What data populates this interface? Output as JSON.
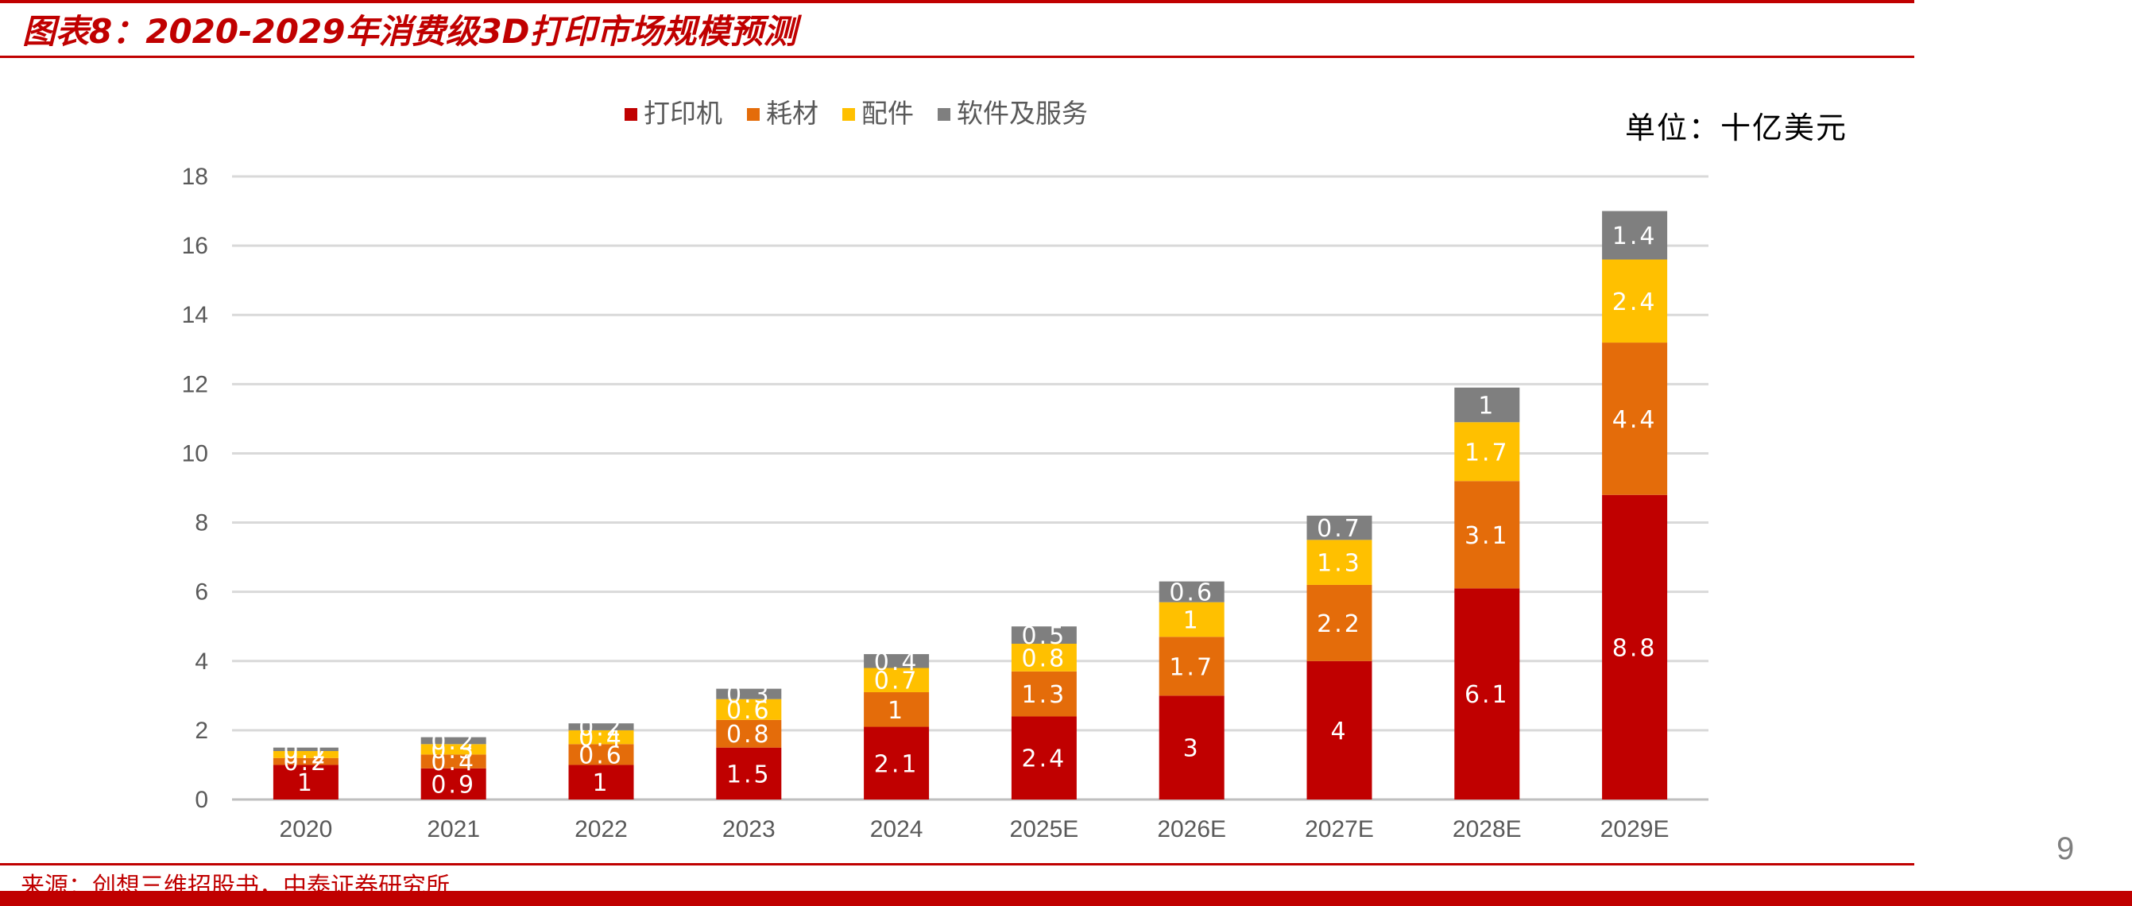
{
  "header": {
    "title": "图表8：2020-2029年消费级3D打印市场规模预测",
    "unit": "单位：十亿美元"
  },
  "footer": {
    "source": "来源：创想三维招股书，中泰证券研究所",
    "page_number": "9"
  },
  "colors": {
    "accent": "#c00000",
    "series": [
      "#c00000",
      "#e46c0a",
      "#ffc000",
      "#7f7f7f"
    ]
  },
  "chart_data": {
    "type": "bar",
    "stacked": true,
    "categories": [
      "2020",
      "2021",
      "2022",
      "2023",
      "2024",
      "2025E",
      "2026E",
      "2027E",
      "2028E",
      "2029E"
    ],
    "series": [
      {
        "name": "打印机",
        "values": [
          1,
          0.9,
          1,
          1.5,
          2.1,
          2.4,
          3,
          4,
          6.1,
          8.8
        ]
      },
      {
        "name": "耗材",
        "values": [
          0.2,
          0.4,
          0.6,
          0.8,
          1,
          1.3,
          1.7,
          2.2,
          3.1,
          4.4
        ]
      },
      {
        "name": "配件",
        "values": [
          0.2,
          0.3,
          0.4,
          0.6,
          0.7,
          0.8,
          1,
          1.3,
          1.7,
          2.4
        ]
      },
      {
        "name": "软件及服务",
        "values": [
          0.1,
          0.2,
          0.2,
          0.3,
          0.4,
          0.5,
          0.6,
          0.7,
          1,
          1.4
        ]
      }
    ],
    "ylim": [
      0,
      18
    ],
    "yticks": [
      0,
      2,
      4,
      6,
      8,
      10,
      12,
      14,
      16,
      18
    ],
    "grid": true,
    "legend": "top"
  }
}
